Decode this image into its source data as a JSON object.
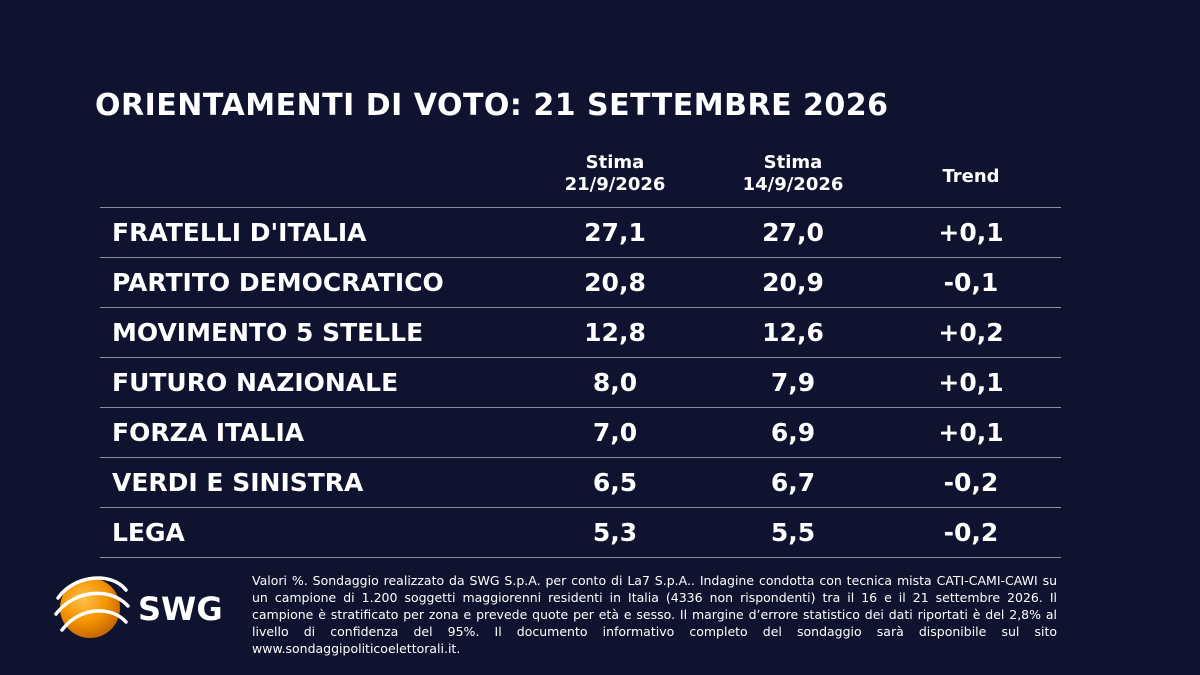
{
  "chart_data": {
    "type": "table",
    "title": "ORIENTAMENTI DI VOTO: 21 SETTEMBRE 2026",
    "columns": [
      {
        "line1": "Stima",
        "line2": "21/9/2026"
      },
      {
        "line1": "Stima",
        "line2": "14/9/2026"
      },
      {
        "line1": "Trend",
        "line2": ""
      }
    ],
    "rows": [
      {
        "party": "FRATELLI D'ITALIA",
        "stima_21_9": "27,1",
        "stima_14_9": "27,0",
        "trend": "+0,1"
      },
      {
        "party": "PARTITO DEMOCRATICO",
        "stima_21_9": "20,8",
        "stima_14_9": "20,9",
        "trend": "-0,1"
      },
      {
        "party": "MOVIMENTO 5 STELLE",
        "stima_21_9": "12,8",
        "stima_14_9": "12,6",
        "trend": "+0,2"
      },
      {
        "party": "FUTURO NAZIONALE",
        "stima_21_9": "8,0",
        "stima_14_9": "7,9",
        "trend": "+0,1"
      },
      {
        "party": "FORZA ITALIA",
        "stima_21_9": "7,0",
        "stima_14_9": "6,9",
        "trend": "+0,1"
      },
      {
        "party": "VERDI E SINISTRA",
        "stima_21_9": "6,5",
        "stima_14_9": "6,7",
        "trend": "-0,2"
      },
      {
        "party": "LEGA",
        "stima_21_9": "5,3",
        "stima_14_9": "5,5",
        "trend": "-0,2"
      }
    ]
  },
  "footnote": "Valori %. Sondaggio realizzato da SWG S.p.A. per conto di La7 S.p.A.. Indagine condotta con tecnica mista CATI-CAMI-CAWI su un campione di 1.200 soggetti maggiorenni residenti in Italia (4336 non rispondenti) tra il 16 e il 21 settembre 2026. Il campione è stratificato per zona e prevede quote per età e sesso. Il margine d’errore statistico dei dati riportati è del 2,8% al livello di confidenza del 95%. Il documento informativo completo del sondaggio sarà disponibile sul sito www.sondaggipoliticoelettorali.it.",
  "logo": {
    "text": "SWG",
    "icon": "swg-globe-icon"
  },
  "colors": {
    "background": "#101330",
    "text": "#ffffff",
    "rule": "#8a8fa3",
    "logo_orange": "#f39200"
  }
}
